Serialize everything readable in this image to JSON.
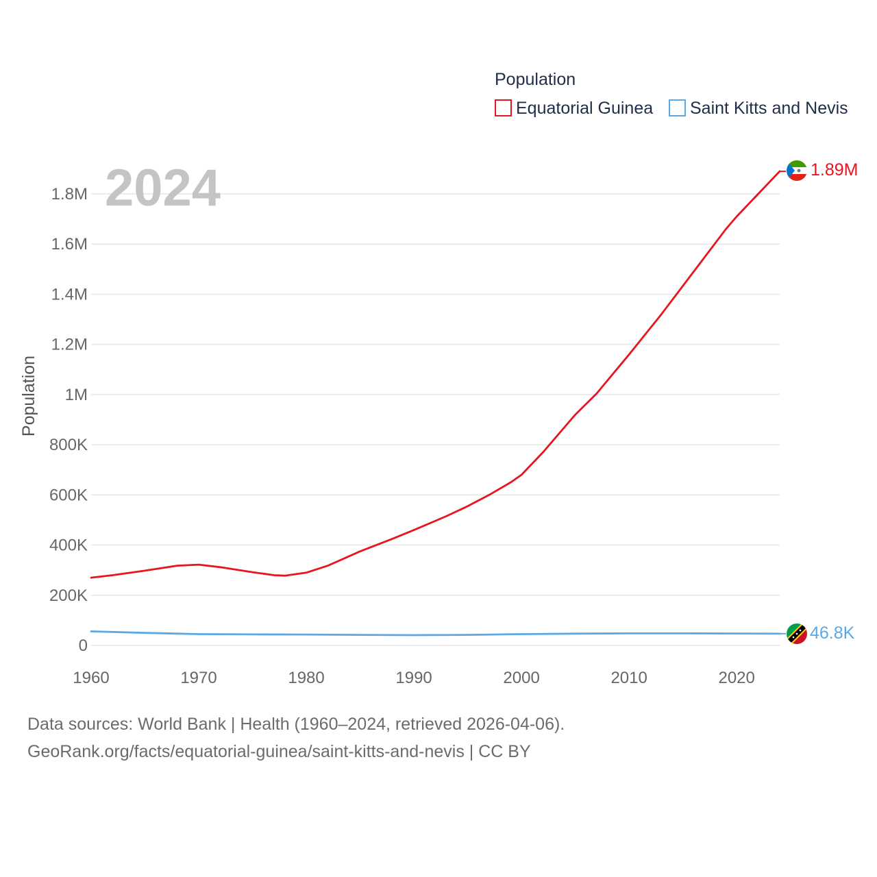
{
  "chart_data": {
    "type": "line",
    "year_label": "2024",
    "legend_title": "Population",
    "ylabel": "Population",
    "xlim": [
      1960,
      2024
    ],
    "ylim": [
      0,
      1800000
    ],
    "x_ticks": [
      1960,
      1970,
      1980,
      1990,
      2000,
      2010,
      2020
    ],
    "y_ticks": [
      {
        "value": 0,
        "label": "0"
      },
      {
        "value": 200000,
        "label": "200K"
      },
      {
        "value": 400000,
        "label": "400K"
      },
      {
        "value": 600000,
        "label": "600K"
      },
      {
        "value": 800000,
        "label": "800K"
      },
      {
        "value": 1000000,
        "label": "1M"
      },
      {
        "value": 1200000,
        "label": "1.2M"
      },
      {
        "value": 1400000,
        "label": "1.4M"
      },
      {
        "value": 1600000,
        "label": "1.6M"
      },
      {
        "value": 1800000,
        "label": "1.8M"
      }
    ],
    "series": [
      {
        "name": "Equatorial Guinea",
        "color": "#e8141e",
        "end_label": "1.89M",
        "flag": "equatorial-guinea-flag-icon",
        "points": [
          [
            1960,
            270000
          ],
          [
            1962,
            280000
          ],
          [
            1965,
            298000
          ],
          [
            1968,
            318000
          ],
          [
            1970,
            322000
          ],
          [
            1972,
            312000
          ],
          [
            1975,
            292000
          ],
          [
            1977,
            280000
          ],
          [
            1978,
            278000
          ],
          [
            1980,
            290000
          ],
          [
            1982,
            318000
          ],
          [
            1985,
            375000
          ],
          [
            1988,
            425000
          ],
          [
            1990,
            460000
          ],
          [
            1993,
            515000
          ],
          [
            1995,
            555000
          ],
          [
            1997,
            600000
          ],
          [
            1999,
            650000
          ],
          [
            2000,
            680000
          ],
          [
            2002,
            770000
          ],
          [
            2004,
            870000
          ],
          [
            2005,
            920000
          ],
          [
            2007,
            1005000
          ],
          [
            2010,
            1160000
          ],
          [
            2013,
            1320000
          ],
          [
            2016,
            1490000
          ],
          [
            2019,
            1660000
          ],
          [
            2020,
            1710000
          ],
          [
            2022,
            1800000
          ],
          [
            2024,
            1890000
          ]
        ]
      },
      {
        "name": "Saint Kitts and Nevis",
        "color": "#5aa9e6",
        "end_label": "46.8K",
        "flag": "saint-kitts-and-nevis-flag-icon",
        "points": [
          [
            1960,
            56000
          ],
          [
            1965,
            50000
          ],
          [
            1970,
            45000
          ],
          [
            1975,
            44000
          ],
          [
            1980,
            43500
          ],
          [
            1985,
            42000
          ],
          [
            1990,
            41000
          ],
          [
            1995,
            42000
          ],
          [
            2000,
            45000
          ],
          [
            2005,
            47000
          ],
          [
            2010,
            48000
          ],
          [
            2015,
            48000
          ],
          [
            2020,
            47500
          ],
          [
            2024,
            46800
          ]
        ]
      }
    ]
  },
  "footer": {
    "line1": "Data sources: World Bank | Health (1960–2024, retrieved 2026-04-06).",
    "line2": "GeoRank.org/facts/equatorial-guinea/saint-kitts-and-nevis | CC BY"
  }
}
